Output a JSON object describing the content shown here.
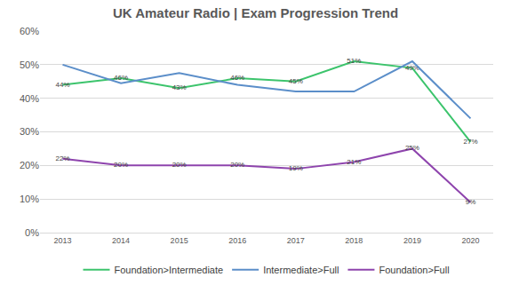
{
  "chart_data": {
    "type": "line",
    "title": "UK Amateur Radio | Exam Progression Trend",
    "categories": [
      "2013",
      "2014",
      "2015",
      "2016",
      "2017",
      "2018",
      "2019",
      "2020"
    ],
    "series": [
      {
        "name": "Foundation>Intermediate",
        "color": "#3cc46c",
        "values": [
          44,
          46,
          43,
          46,
          45,
          51,
          49,
          27
        ],
        "value_labels": [
          "44%",
          "46%",
          "43%",
          "46%",
          "45%",
          "51%",
          "49%",
          "27%"
        ],
        "data_labels": true
      },
      {
        "name": "Intermediate>Full",
        "color": "#5b8ec9",
        "values": [
          50,
          44.5,
          47.5,
          44,
          42,
          42,
          51,
          34
        ],
        "data_labels": false
      },
      {
        "name": "Foundation>Full",
        "color": "#8e44ad",
        "values": [
          22,
          20,
          20,
          20,
          19,
          21,
          25,
          9
        ],
        "value_labels": [
          "22%",
          "20%",
          "20%",
          "20%",
          "19%",
          "21%",
          "25%",
          "9%"
        ],
        "data_labels": true
      }
    ],
    "ylim": [
      0,
      60
    ],
    "yticks": [
      {
        "value": 0,
        "label": "0%"
      },
      {
        "value": 10,
        "label": "10%"
      },
      {
        "value": 20,
        "label": "20%"
      },
      {
        "value": 30,
        "label": "30%"
      },
      {
        "value": 40,
        "label": "40%"
      },
      {
        "value": 50,
        "label": "50%"
      },
      {
        "value": 60,
        "label": "60%"
      }
    ],
    "grid": true,
    "legend": "bottom"
  }
}
